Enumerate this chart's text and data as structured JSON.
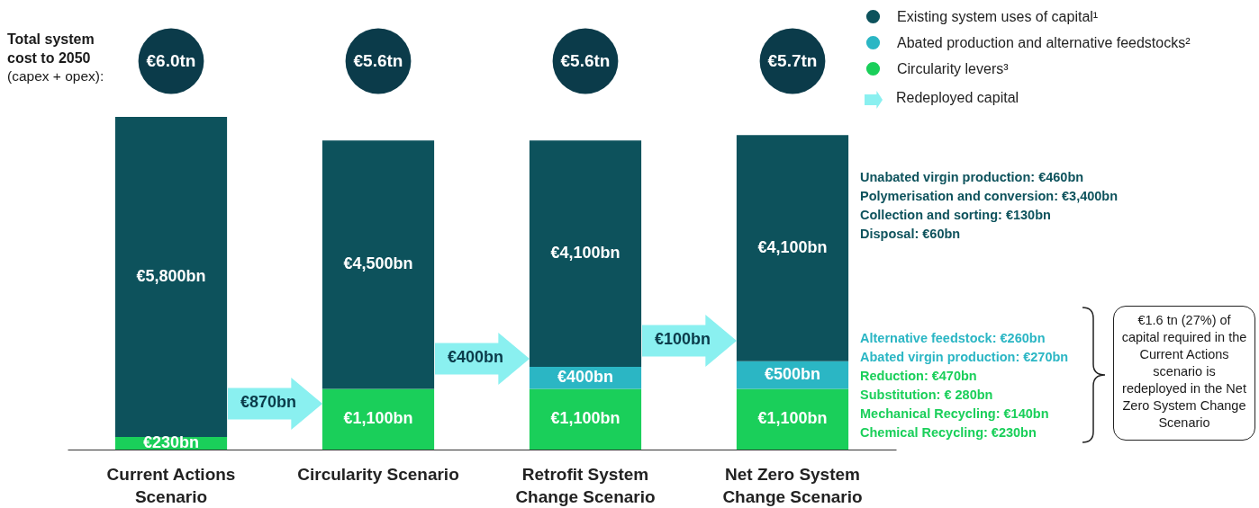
{
  "chart_data": {
    "type": "bar",
    "stacked": true,
    "legend": "top right",
    "grid": false,
    "tick_labels": "x",
    "categories": [
      "Current Actions Scenario",
      "Circularity Scenario",
      "Retrofit System Change Scenario",
      "Net Zero System Change Scenario"
    ],
    "series": [
      {
        "name": "Circularity levers³",
        "color": "#1acf5a",
        "values": [
          230,
          1100,
          1100,
          1100
        ],
        "value_labels": [
          "€230bn",
          "€1,100bn",
          "€1,100bn",
          "€1,100bn"
        ]
      },
      {
        "name": "Abated production and alternative feedstocks²",
        "color": "#2bb6c4",
        "values": [
          null,
          null,
          400,
          500
        ],
        "value_labels": [
          null,
          null,
          "€400bn",
          "€500bn"
        ]
      },
      {
        "name": "Existing system uses of capital¹",
        "color": "#0d525c",
        "values": [
          5800,
          4500,
          4100,
          4100
        ],
        "value_labels": [
          "€5,800bn",
          "€4,500bn",
          "€4,100bn",
          "€4,100bn"
        ]
      }
    ],
    "annotations": [
      "Total system cost to 2050",
      "(capex + opex):",
      "€6.0tn",
      "€5.6tn",
      "€5.6tn",
      "€5.7tn",
      "€870bn",
      "€400bn",
      "€100bn",
      "Redeployed capital",
      "Unabated virgin production: €460bn",
      "Polymerisation and conversion: €3,400bn",
      "Collection and sorting: €130bn",
      "Disposal: €60bn",
      "Alternative feedstock: €260bn",
      "Abated virgin production: €270bn",
      "Reduction: €470bn",
      "Substitution: € 280bn",
      "Mechanical Recycling: €140bn",
      "Chemical Recycling: €230bn",
      "€1.6 tn (27%) of capital required in the Current Actions scenario is redeployed in the Net Zero System Change Scenario"
    ]
  }
}
